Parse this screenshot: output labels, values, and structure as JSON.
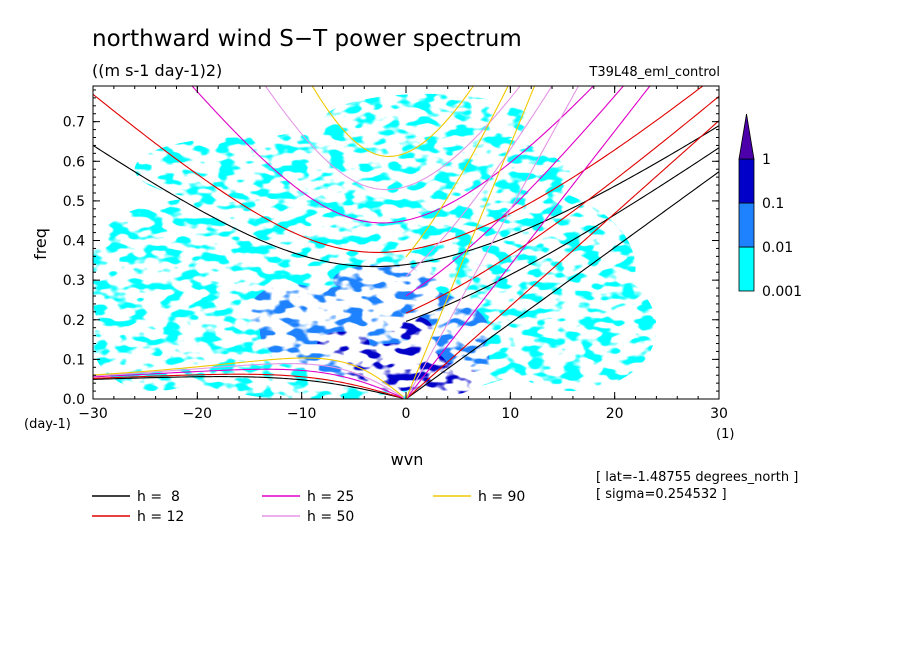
{
  "chart_data": {
    "type": "heatmap",
    "title": "northward wind S−T power spectrum",
    "units": "((m s-1 day-1)2)",
    "experiment": "T39L48_eml_control",
    "xlabel": "wvn",
    "ylabel": "freq",
    "x_unit_label": "(1)",
    "y_unit_label": "(day-1)",
    "xlim": [
      -30,
      30
    ],
    "ylim": [
      0,
      0.79
    ],
    "x_ticks": [
      -30,
      -20,
      -10,
      0,
      10,
      20,
      30
    ],
    "x_tick_labels": [
      "−30",
      "−20",
      "−10",
      "0",
      "10",
      "20",
      "30"
    ],
    "y_ticks": [
      0,
      0.1,
      0.2,
      0.3,
      0.4,
      0.5,
      0.6,
      0.7
    ],
    "y_tick_labels": [
      "0.0",
      "0.1",
      "0.2",
      "0.3",
      "0.4",
      "0.5",
      "0.6",
      "0.7"
    ],
    "contour_levels": [
      0.001,
      0.01,
      0.1,
      1
    ],
    "colorbar": {
      "labels": [
        "0.001",
        "0.01",
        "0.1",
        "1"
      ],
      "colors": [
        "#00ffff",
        "#1e82ff",
        "#0000c8",
        "#4b00aa"
      ]
    },
    "shading": {
      "low_color": "#00ffff",
      "mid_color": "#1e82ff",
      "high_color": "#0000c8",
      "peak_region": {
        "wvn_center": 0,
        "freq_center": 0.08
      }
    },
    "dispersion_curves": [
      {
        "name": "h =  8",
        "h": 8,
        "color": "#000000"
      },
      {
        "name": "h = 12",
        "h": 12,
        "color": "#e00000"
      },
      {
        "name": "h = 25",
        "h": 25,
        "color": "#e000c8"
      },
      {
        "name": "h = 50",
        "h": 50,
        "color": "#e496e6"
      },
      {
        "name": "h = 90",
        "h": 90,
        "color": "#f0c800"
      }
    ],
    "annotations": {
      "lat": "[ lat=-1.48755 degrees_north ]",
      "sigma": "[ sigma=0.254532 ]"
    }
  }
}
